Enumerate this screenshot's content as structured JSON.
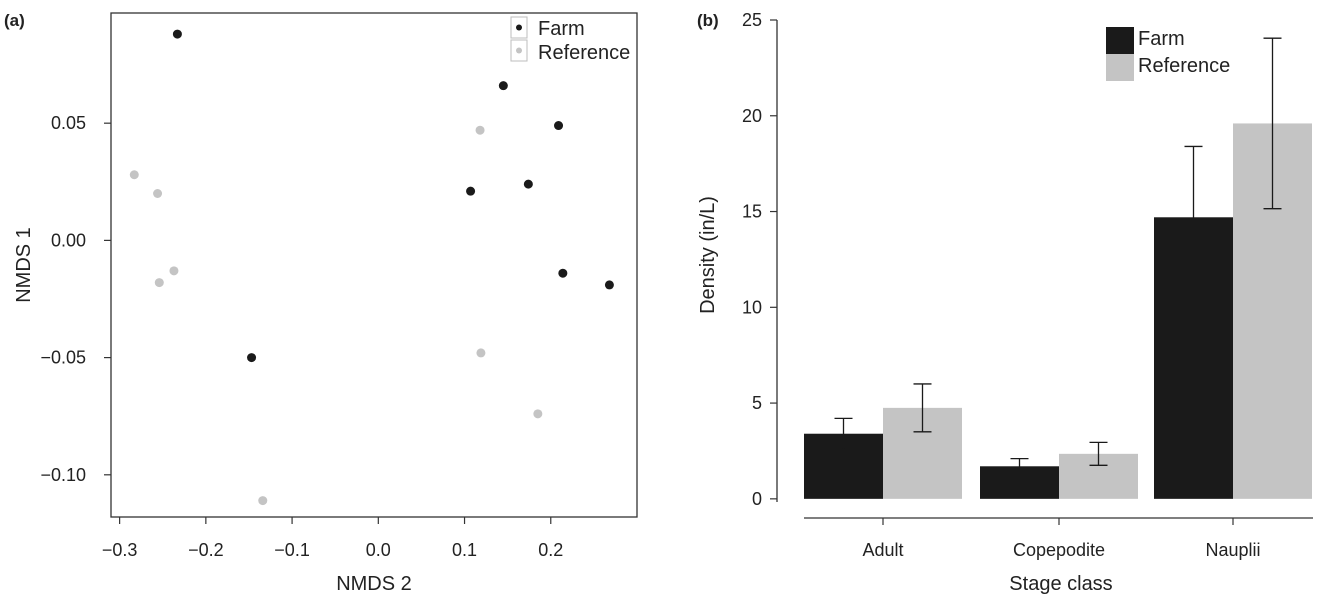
{
  "colors": {
    "farm": "#1a1a1a",
    "reference": "#c4c4c4",
    "axis": "#333333"
  },
  "chart_data": [
    {
      "panel": "(a)",
      "type": "scatter",
      "xlabel": "NMDS 2",
      "ylabel": "NMDS 1",
      "xlim": [
        -0.31,
        0.3
      ],
      "ylim": [
        -0.118,
        0.097
      ],
      "xticks": [
        -0.3,
        -0.2,
        -0.1,
        0.0,
        0.1,
        0.2
      ],
      "xtick_labels": [
        "−0.3",
        "−0.2",
        "−0.1",
        "0.0",
        "0.1",
        "0.2"
      ],
      "yticks": [
        0.05,
        0.0,
        -0.05,
        -0.1
      ],
      "ytick_labels": [
        "0.05",
        "0.00",
        "−0.05",
        "−0.10"
      ],
      "legend": {
        "position": "top-right",
        "entries": [
          "Farm",
          "Reference"
        ]
      },
      "series": [
        {
          "name": "Farm",
          "color": "#1a1a1a",
          "points": [
            [
              -0.233,
              0.088
            ],
            [
              0.145,
              0.066
            ],
            [
              0.209,
              0.049
            ],
            [
              0.174,
              0.024
            ],
            [
              0.107,
              0.021
            ],
            [
              0.214,
              -0.014
            ],
            [
              0.268,
              -0.019
            ],
            [
              -0.147,
              -0.05
            ]
          ]
        },
        {
          "name": "Reference",
          "color": "#c4c4c4",
          "points": [
            [
              0.118,
              0.047
            ],
            [
              -0.283,
              0.028
            ],
            [
              -0.256,
              0.02
            ],
            [
              -0.237,
              -0.013
            ],
            [
              -0.254,
              -0.018
            ],
            [
              0.119,
              -0.048
            ],
            [
              0.185,
              -0.074
            ],
            [
              -0.134,
              -0.111
            ]
          ]
        }
      ]
    },
    {
      "panel": "(b)",
      "type": "bar",
      "xlabel": "Stage class",
      "ylabel": "Density (in/L)",
      "ylim": [
        -1,
        25
      ],
      "yticks": [
        0,
        5,
        10,
        15,
        20,
        25
      ],
      "categories": [
        "Adult",
        "Copepodite",
        "Nauplii"
      ],
      "legend": {
        "position": "top-right",
        "entries": [
          "Farm",
          "Reference"
        ]
      },
      "series": [
        {
          "name": "Farm",
          "color": "#1a1a1a",
          "values": [
            3.4,
            1.7,
            14.7
          ],
          "error": [
            0.8,
            0.4,
            3.7
          ]
        },
        {
          "name": "Reference",
          "color": "#c4c4c4",
          "values": [
            4.75,
            2.35,
            19.6
          ],
          "error": [
            1.25,
            0.6,
            4.45
          ]
        }
      ]
    }
  ]
}
